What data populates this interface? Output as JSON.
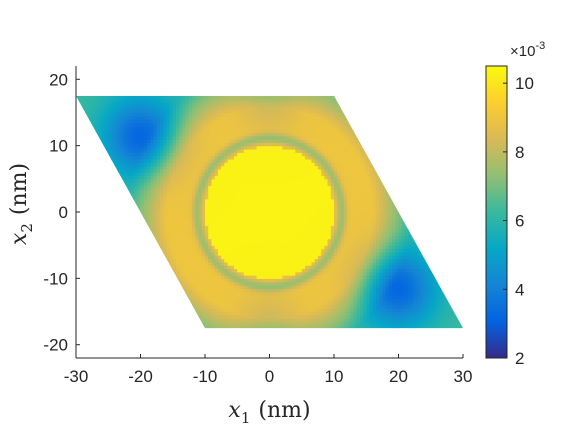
{
  "chart_data": {
    "type": "heatmap",
    "title": "",
    "xlabel": {
      "var": "x",
      "sub": "1",
      "unit": "(nm)"
    },
    "ylabel": {
      "var": "x",
      "sub": "2",
      "unit": "(nm)"
    },
    "xlim": [
      -30,
      30
    ],
    "ylim": [
      -22,
      22
    ],
    "xticks": [
      -30,
      -20,
      -10,
      0,
      10,
      20,
      30
    ],
    "yticks": [
      -20,
      -10,
      0,
      10,
      20
    ],
    "xtick_labels": [
      "-30",
      "-20",
      "-10",
      "0",
      "10",
      "20",
      "30"
    ],
    "ytick_labels": [
      "-20",
      "-10",
      "0",
      "10",
      "20"
    ],
    "domain": {
      "shape": "parallelogram",
      "vertices": [
        [
          -30,
          17.5
        ],
        [
          10,
          17.5
        ],
        [
          30,
          -17.5
        ],
        [
          -10,
          -17.5
        ]
      ]
    },
    "colorbar": {
      "colormap": "parula",
      "range": [
        2,
        10.5
      ],
      "ticks": [
        2,
        4,
        6,
        8,
        10
      ],
      "tick_labels": [
        "2",
        "4",
        "6",
        "8",
        "10"
      ],
      "exponent_label": "×10",
      "exponent_power": "-3"
    },
    "features": {
      "central_plateau": {
        "center": [
          0,
          0
        ],
        "radius_nm": 10,
        "value": 10.3
      },
      "ring": {
        "radius_nm": 11.2,
        "value": 7.5
      },
      "halo": {
        "radius_nm": 14,
        "value": 9.0
      },
      "background_value": 6.3,
      "minima": [
        {
          "center": [
            -20,
            11.5
          ],
          "value": 3.2
        },
        {
          "center": [
            20,
            -11.5
          ],
          "value": 3.2
        }
      ]
    },
    "grid": false,
    "legend": "none"
  }
}
